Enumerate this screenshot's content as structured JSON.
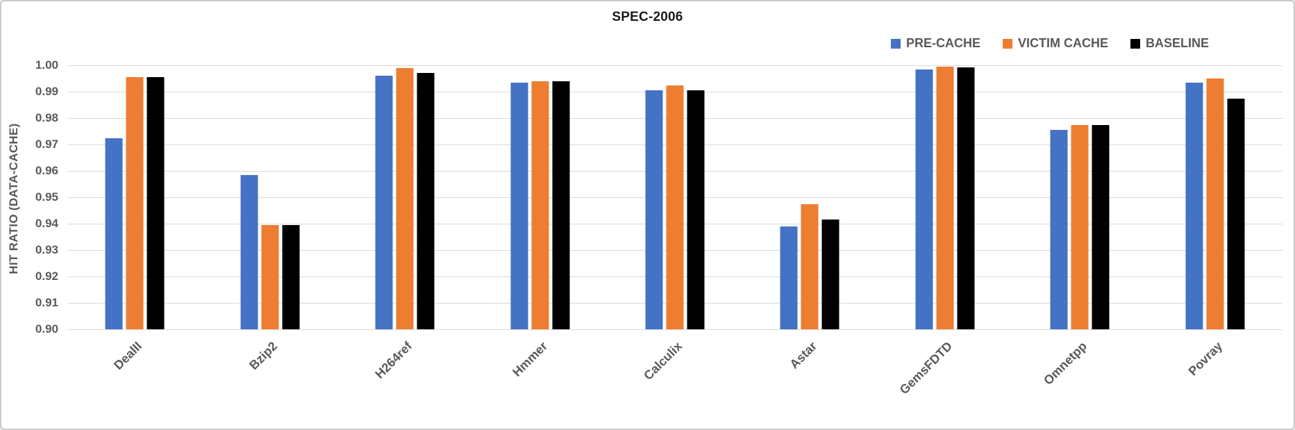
{
  "chart_data": {
    "type": "bar",
    "title": "SPEC-2006",
    "ylabel": "HIT RATIO (DATA-CACHE)",
    "xlabel": "",
    "ylim": [
      0.9,
      1.0
    ],
    "ytick_step": 0.01,
    "grid": true,
    "legend_position": "top-right",
    "categories": [
      "DealII",
      "Bzip2",
      "H264ref",
      "Hmmer",
      "Calculix",
      "Astar",
      "GemsFDTD",
      "Omnetpp",
      "Povray"
    ],
    "series": [
      {
        "name": "PRE-CACHE",
        "color": "#4472C4",
        "values": [
          0.9725,
          0.9585,
          0.996,
          0.9935,
          0.9905,
          0.939,
          0.9985,
          0.9755,
          0.9935
        ]
      },
      {
        "name": "VICTIM CACHE",
        "color": "#ED7D31",
        "values": [
          0.9955,
          0.9395,
          0.999,
          0.994,
          0.9925,
          0.9475,
          0.9995,
          0.9775,
          0.995
        ]
      },
      {
        "name": "BASELINE",
        "color": "#000000",
        "values": [
          0.9955,
          0.9395,
          0.997,
          0.994,
          0.9905,
          0.9415,
          0.9993,
          0.9775,
          0.9875
        ]
      }
    ]
  },
  "colors": {
    "grid": "#D9D9D9",
    "axis_text": "#595959",
    "title_text": "#1a1a1a",
    "frame_border": "#c9c9c9",
    "background": "#ffffff"
  }
}
